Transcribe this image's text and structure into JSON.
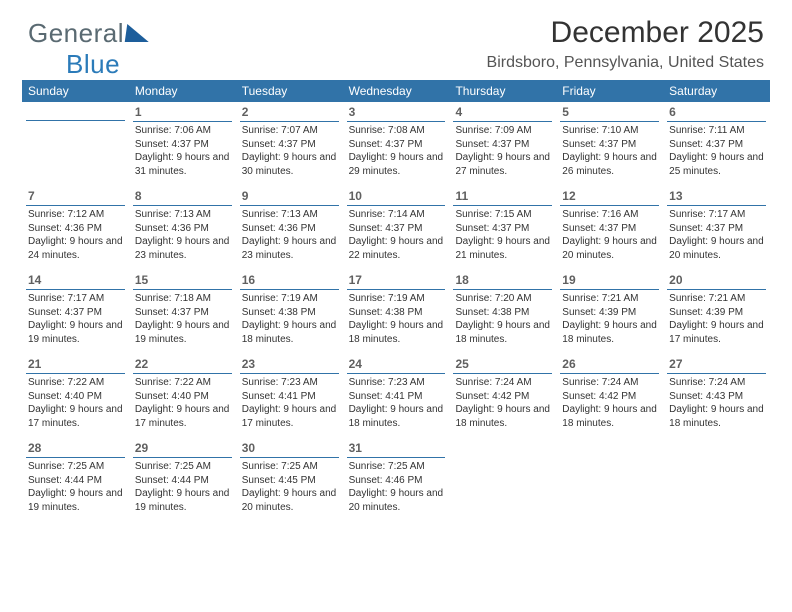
{
  "logo": {
    "text_a": "General",
    "text_b": "Blue"
  },
  "title": "December 2025",
  "location": "Birdsboro, Pennsylvania, United States",
  "header_bg": "#3173a8",
  "rule_color": "#3173a8",
  "weekdays": [
    "Sunday",
    "Monday",
    "Tuesday",
    "Wednesday",
    "Thursday",
    "Friday",
    "Saturday"
  ],
  "weeks": [
    [
      {
        "n": "",
        "sr": "",
        "ss": "",
        "dl": ""
      },
      {
        "n": "1",
        "sr": "Sunrise: 7:06 AM",
        "ss": "Sunset: 4:37 PM",
        "dl": "Daylight: 9 hours and 31 minutes."
      },
      {
        "n": "2",
        "sr": "Sunrise: 7:07 AM",
        "ss": "Sunset: 4:37 PM",
        "dl": "Daylight: 9 hours and 30 minutes."
      },
      {
        "n": "3",
        "sr": "Sunrise: 7:08 AM",
        "ss": "Sunset: 4:37 PM",
        "dl": "Daylight: 9 hours and 29 minutes."
      },
      {
        "n": "4",
        "sr": "Sunrise: 7:09 AM",
        "ss": "Sunset: 4:37 PM",
        "dl": "Daylight: 9 hours and 27 minutes."
      },
      {
        "n": "5",
        "sr": "Sunrise: 7:10 AM",
        "ss": "Sunset: 4:37 PM",
        "dl": "Daylight: 9 hours and 26 minutes."
      },
      {
        "n": "6",
        "sr": "Sunrise: 7:11 AM",
        "ss": "Sunset: 4:37 PM",
        "dl": "Daylight: 9 hours and 25 minutes."
      }
    ],
    [
      {
        "n": "7",
        "sr": "Sunrise: 7:12 AM",
        "ss": "Sunset: 4:36 PM",
        "dl": "Daylight: 9 hours and 24 minutes."
      },
      {
        "n": "8",
        "sr": "Sunrise: 7:13 AM",
        "ss": "Sunset: 4:36 PM",
        "dl": "Daylight: 9 hours and 23 minutes."
      },
      {
        "n": "9",
        "sr": "Sunrise: 7:13 AM",
        "ss": "Sunset: 4:36 PM",
        "dl": "Daylight: 9 hours and 23 minutes."
      },
      {
        "n": "10",
        "sr": "Sunrise: 7:14 AM",
        "ss": "Sunset: 4:37 PM",
        "dl": "Daylight: 9 hours and 22 minutes."
      },
      {
        "n": "11",
        "sr": "Sunrise: 7:15 AM",
        "ss": "Sunset: 4:37 PM",
        "dl": "Daylight: 9 hours and 21 minutes."
      },
      {
        "n": "12",
        "sr": "Sunrise: 7:16 AM",
        "ss": "Sunset: 4:37 PM",
        "dl": "Daylight: 9 hours and 20 minutes."
      },
      {
        "n": "13",
        "sr": "Sunrise: 7:17 AM",
        "ss": "Sunset: 4:37 PM",
        "dl": "Daylight: 9 hours and 20 minutes."
      }
    ],
    [
      {
        "n": "14",
        "sr": "Sunrise: 7:17 AM",
        "ss": "Sunset: 4:37 PM",
        "dl": "Daylight: 9 hours and 19 minutes."
      },
      {
        "n": "15",
        "sr": "Sunrise: 7:18 AM",
        "ss": "Sunset: 4:37 PM",
        "dl": "Daylight: 9 hours and 19 minutes."
      },
      {
        "n": "16",
        "sr": "Sunrise: 7:19 AM",
        "ss": "Sunset: 4:38 PM",
        "dl": "Daylight: 9 hours and 18 minutes."
      },
      {
        "n": "17",
        "sr": "Sunrise: 7:19 AM",
        "ss": "Sunset: 4:38 PM",
        "dl": "Daylight: 9 hours and 18 minutes."
      },
      {
        "n": "18",
        "sr": "Sunrise: 7:20 AM",
        "ss": "Sunset: 4:38 PM",
        "dl": "Daylight: 9 hours and 18 minutes."
      },
      {
        "n": "19",
        "sr": "Sunrise: 7:21 AM",
        "ss": "Sunset: 4:39 PM",
        "dl": "Daylight: 9 hours and 18 minutes."
      },
      {
        "n": "20",
        "sr": "Sunrise: 7:21 AM",
        "ss": "Sunset: 4:39 PM",
        "dl": "Daylight: 9 hours and 17 minutes."
      }
    ],
    [
      {
        "n": "21",
        "sr": "Sunrise: 7:22 AM",
        "ss": "Sunset: 4:40 PM",
        "dl": "Daylight: 9 hours and 17 minutes."
      },
      {
        "n": "22",
        "sr": "Sunrise: 7:22 AM",
        "ss": "Sunset: 4:40 PM",
        "dl": "Daylight: 9 hours and 17 minutes."
      },
      {
        "n": "23",
        "sr": "Sunrise: 7:23 AM",
        "ss": "Sunset: 4:41 PM",
        "dl": "Daylight: 9 hours and 17 minutes."
      },
      {
        "n": "24",
        "sr": "Sunrise: 7:23 AM",
        "ss": "Sunset: 4:41 PM",
        "dl": "Daylight: 9 hours and 18 minutes."
      },
      {
        "n": "25",
        "sr": "Sunrise: 7:24 AM",
        "ss": "Sunset: 4:42 PM",
        "dl": "Daylight: 9 hours and 18 minutes."
      },
      {
        "n": "26",
        "sr": "Sunrise: 7:24 AM",
        "ss": "Sunset: 4:42 PM",
        "dl": "Daylight: 9 hours and 18 minutes."
      },
      {
        "n": "27",
        "sr": "Sunrise: 7:24 AM",
        "ss": "Sunset: 4:43 PM",
        "dl": "Daylight: 9 hours and 18 minutes."
      }
    ],
    [
      {
        "n": "28",
        "sr": "Sunrise: 7:25 AM",
        "ss": "Sunset: 4:44 PM",
        "dl": "Daylight: 9 hours and 19 minutes."
      },
      {
        "n": "29",
        "sr": "Sunrise: 7:25 AM",
        "ss": "Sunset: 4:44 PM",
        "dl": "Daylight: 9 hours and 19 minutes."
      },
      {
        "n": "30",
        "sr": "Sunrise: 7:25 AM",
        "ss": "Sunset: 4:45 PM",
        "dl": "Daylight: 9 hours and 20 minutes."
      },
      {
        "n": "31",
        "sr": "Sunrise: 7:25 AM",
        "ss": "Sunset: 4:46 PM",
        "dl": "Daylight: 9 hours and 20 minutes."
      },
      {
        "n": "",
        "sr": "",
        "ss": "",
        "dl": ""
      },
      {
        "n": "",
        "sr": "",
        "ss": "",
        "dl": ""
      },
      {
        "n": "",
        "sr": "",
        "ss": "",
        "dl": ""
      }
    ]
  ]
}
